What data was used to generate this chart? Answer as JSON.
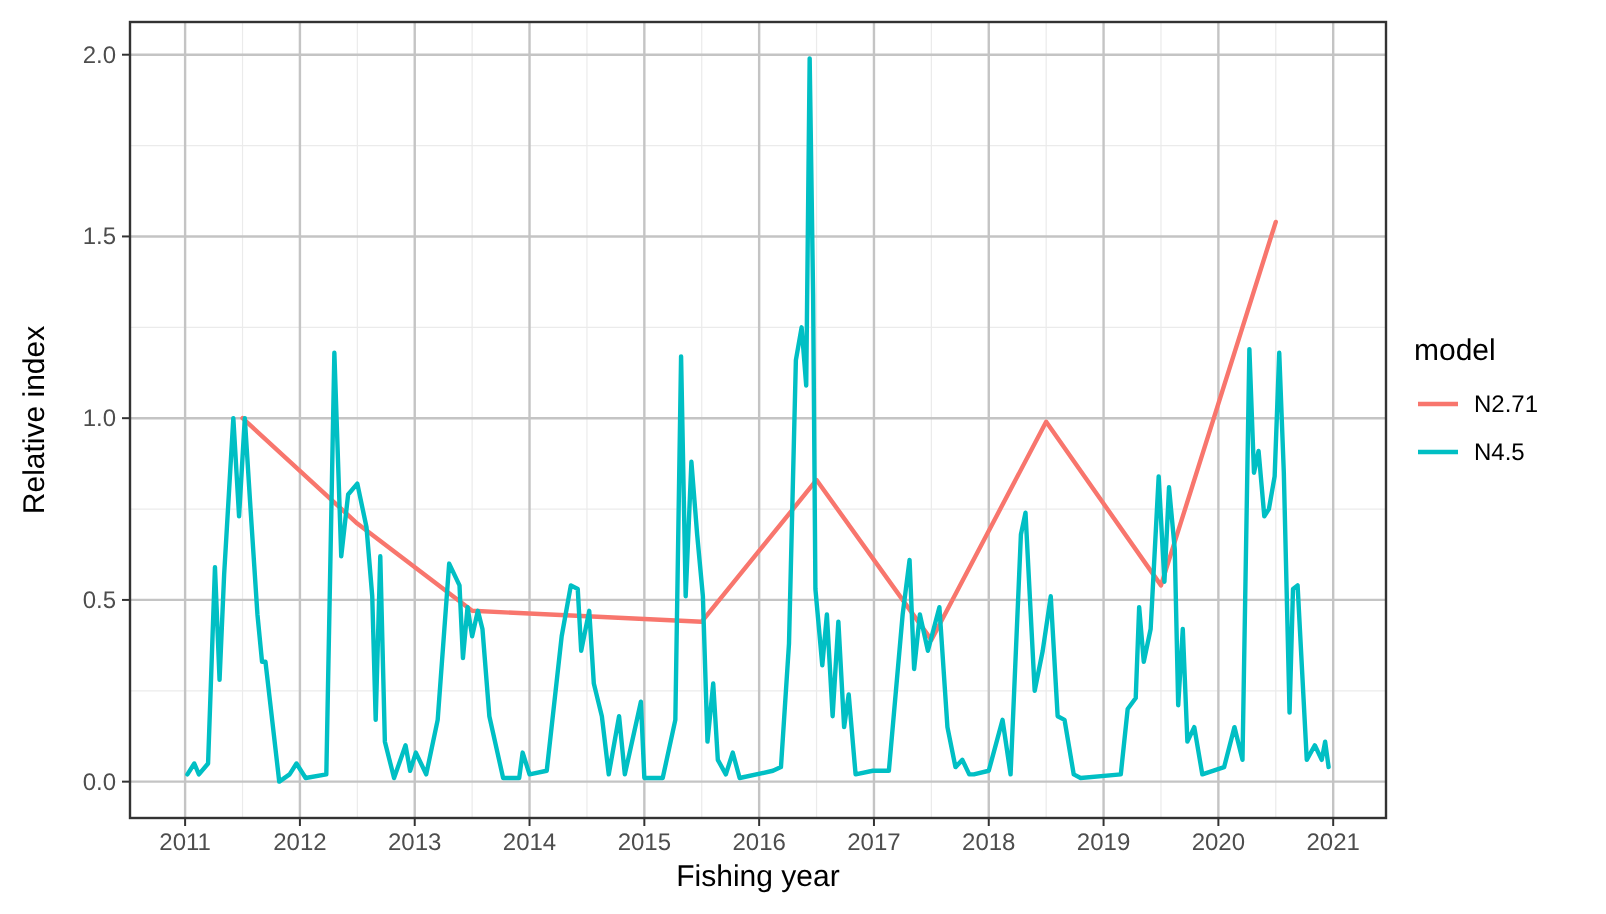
{
  "chart_data": {
    "type": "line",
    "xlabel": "Fishing year",
    "ylabel": "Relative index",
    "legend_title": "model",
    "legend": "right",
    "grid": true,
    "xlim": [
      2010.52,
      2021.46
    ],
    "xticks": [
      2011,
      2012,
      2013,
      2014,
      2015,
      2016,
      2017,
      2018,
      2019,
      2020,
      2021
    ],
    "ylim": [
      -0.1,
      2.09
    ],
    "yticks": [
      {
        "value": 0,
        "label": "0.0"
      },
      {
        "value": 0.5,
        "label": "0.5"
      },
      {
        "value": 1,
        "label": "1.0"
      },
      {
        "value": 1.5,
        "label": "1.5"
      },
      {
        "value": 2,
        "label": "2.0"
      }
    ],
    "series": [
      {
        "name": "N2.71",
        "color": "#f8766d",
        "x": [
          2011.5,
          2012.5,
          2013.5,
          2014.5,
          2015.5,
          2016.5,
          2017.5,
          2018.5,
          2019.5,
          2020.5
        ],
        "values": [
          1.0,
          0.71,
          0.47,
          0.455,
          0.44,
          0.83,
          0.39,
          0.99,
          0.54,
          1.54
        ]
      },
      {
        "name": "N4.5",
        "color": "#00bfc4",
        "x": [
          2011.02,
          2011.08,
          2011.12,
          2011.2,
          2011.26,
          2011.3,
          2011.34,
          2011.42,
          2011.47,
          2011.52,
          2011.57,
          2011.63,
          2011.67,
          2011.7,
          2011.82,
          2011.91,
          2011.97,
          2012.05,
          2012.23,
          2012.3,
          2012.36,
          2012.42,
          2012.5,
          2012.58,
          2012.63,
          2012.66,
          2012.7,
          2012.74,
          2012.82,
          2012.92,
          2012.96,
          2013.01,
          2013.1,
          2013.2,
          2013.3,
          2013.39,
          2013.42,
          2013.46,
          2013.5,
          2013.55,
          2013.59,
          2013.65,
          2013.77,
          2013.91,
          2013.94,
          2014.0,
          2014.15,
          2014.28,
          2014.36,
          2014.42,
          2014.45,
          2014.52,
          2014.56,
          2014.63,
          2014.69,
          2014.78,
          2014.83,
          2014.97,
          2015.0,
          2015.16,
          2015.27,
          2015.32,
          2015.36,
          2015.41,
          2015.46,
          2015.51,
          2015.55,
          2015.6,
          2015.64,
          2015.71,
          2015.77,
          2015.83,
          2016.12,
          2016.19,
          2016.26,
          2016.32,
          2016.37,
          2016.41,
          2016.44,
          2016.47,
          2016.49,
          2016.55,
          2016.59,
          2016.64,
          2016.69,
          2016.74,
          2016.78,
          2016.84,
          2016.99,
          2017.13,
          2017.25,
          2017.31,
          2017.35,
          2017.4,
          2017.47,
          2017.57,
          2017.64,
          2017.71,
          2017.77,
          2017.83,
          2017.87,
          2018.0,
          2018.12,
          2018.19,
          2018.28,
          2018.32,
          2018.4,
          2018.47,
          2018.54,
          2018.6,
          2018.66,
          2018.74,
          2018.8,
          2019.15,
          2019.21,
          2019.28,
          2019.31,
          2019.35,
          2019.41,
          2019.48,
          2019.53,
          2019.57,
          2019.62,
          2019.65,
          2019.69,
          2019.73,
          2019.79,
          2019.86,
          2020.05,
          2020.14,
          2020.21,
          2020.27,
          2020.31,
          2020.35,
          2020.4,
          2020.44,
          2020.49,
          2020.53,
          2020.57,
          2020.62,
          2020.65,
          2020.69,
          2020.77,
          2020.84,
          2020.9,
          2020.93,
          2020.96
        ],
        "values": [
          0.02,
          0.05,
          0.02,
          0.05,
          0.59,
          0.28,
          0.57,
          1.0,
          0.73,
          1.0,
          0.75,
          0.46,
          0.33,
          0.33,
          0.0,
          0.02,
          0.05,
          0.01,
          0.02,
          1.18,
          0.62,
          0.79,
          0.82,
          0.7,
          0.51,
          0.17,
          0.62,
          0.11,
          0.01,
          0.1,
          0.03,
          0.08,
          0.02,
          0.17,
          0.6,
          0.54,
          0.34,
          0.48,
          0.4,
          0.47,
          0.42,
          0.18,
          0.01,
          0.01,
          0.08,
          0.02,
          0.03,
          0.4,
          0.54,
          0.53,
          0.36,
          0.47,
          0.27,
          0.18,
          0.02,
          0.18,
          0.02,
          0.22,
          0.01,
          0.01,
          0.17,
          1.17,
          0.51,
          0.88,
          0.68,
          0.51,
          0.11,
          0.27,
          0.06,
          0.02,
          0.08,
          0.01,
          0.03,
          0.04,
          0.38,
          1.16,
          1.25,
          1.09,
          1.99,
          1.34,
          0.53,
          0.32,
          0.46,
          0.18,
          0.44,
          0.15,
          0.24,
          0.02,
          0.03,
          0.03,
          0.46,
          0.61,
          0.31,
          0.46,
          0.36,
          0.48,
          0.15,
          0.04,
          0.06,
          0.02,
          0.02,
          0.03,
          0.17,
          0.02,
          0.68,
          0.74,
          0.25,
          0.36,
          0.51,
          0.18,
          0.17,
          0.02,
          0.01,
          0.02,
          0.2,
          0.23,
          0.48,
          0.33,
          0.42,
          0.84,
          0.55,
          0.81,
          0.64,
          0.21,
          0.42,
          0.11,
          0.15,
          0.02,
          0.04,
          0.15,
          0.06,
          1.19,
          0.85,
          0.91,
          0.73,
          0.75,
          0.84,
          1.18,
          0.85,
          0.19,
          0.53,
          0.54,
          0.06,
          0.1,
          0.06,
          0.11,
          0.04
        ]
      }
    ]
  }
}
